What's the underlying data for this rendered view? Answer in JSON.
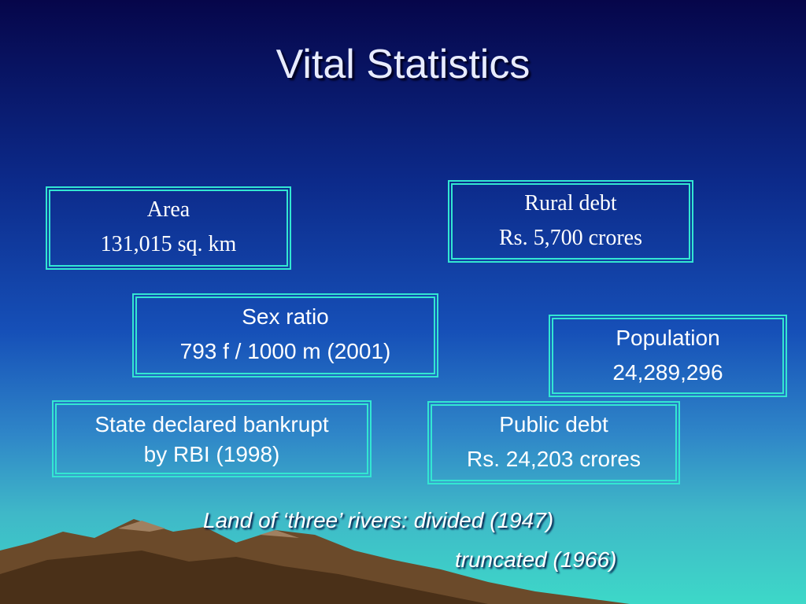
{
  "title": "Vital Statistics",
  "boxes": [
    {
      "lines": [
        "Area",
        "131,015 sq. km"
      ]
    },
    {
      "lines": [
        "Rural debt",
        "Rs. 5,700 crores"
      ]
    },
    {
      "lines": [
        "Sex ratio",
        "793 f / 1000 m (2001)"
      ]
    },
    {
      "lines": [
        "Population",
        "24,289,296"
      ]
    },
    {
      "lines": [
        "State declared bankrupt",
        "by RBI (1998)"
      ]
    },
    {
      "lines": [
        "Public debt",
        "Rs. 24,203 crores"
      ]
    }
  ],
  "footer": {
    "lines": [
      "Land of ‘three’ rivers: divided (1947)",
      "truncated (1966)"
    ]
  }
}
